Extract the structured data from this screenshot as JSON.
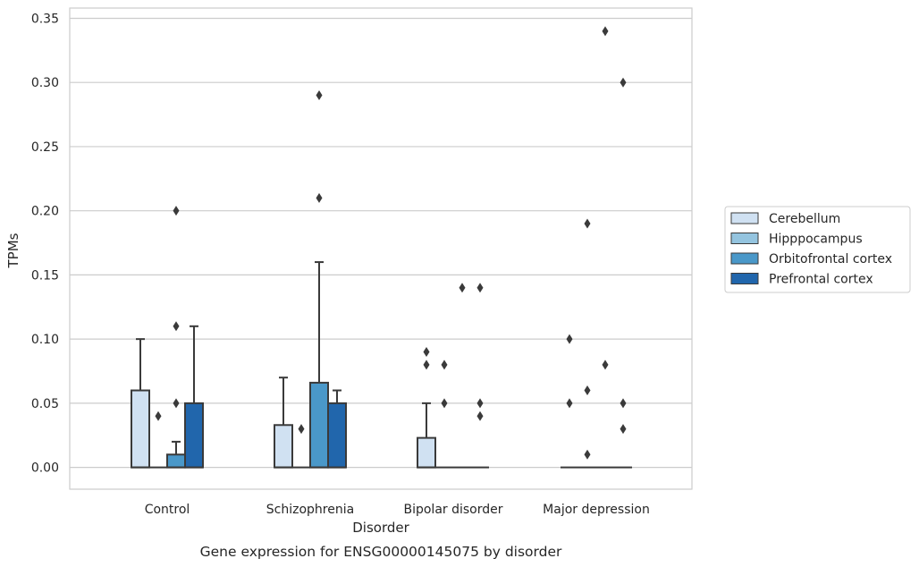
{
  "chart_data": {
    "type": "box",
    "title": "",
    "caption": "Gene expression for ENSG00000145075 by disorder",
    "xlabel": "Disorder",
    "ylabel": "TPMs",
    "ylim": [
      -0.017,
      0.358
    ],
    "yticks": [
      "0.00",
      "0.05",
      "0.10",
      "0.15",
      "0.20",
      "0.25",
      "0.30",
      "0.35"
    ],
    "ytick_values": [
      0.0,
      0.05,
      0.1,
      0.15,
      0.2,
      0.25,
      0.3,
      0.35
    ],
    "grid": "horizontal",
    "legend_position": "right, outside plot area",
    "categories": [
      "Control",
      "Schizophrenia",
      "Bipolar disorder",
      "Major depression"
    ],
    "series": [
      {
        "name": "Cerebellum",
        "color": "#d0e1f2",
        "boxes": [
          {
            "q1": 0.0,
            "median": 0.0,
            "q3": 0.06,
            "whisker_low": 0.0,
            "whisker_high": 0.1,
            "outliers": []
          },
          {
            "q1": 0.0,
            "median": 0.0,
            "q3": 0.033,
            "whisker_low": 0.0,
            "whisker_high": 0.07,
            "outliers": []
          },
          {
            "q1": 0.0,
            "median": 0.0,
            "q3": 0.023,
            "whisker_low": 0.0,
            "whisker_high": 0.05,
            "outliers": [
              0.08,
              0.09
            ]
          },
          {
            "q1": 0.0,
            "median": 0.0,
            "q3": 0.0,
            "whisker_low": 0.0,
            "whisker_high": 0.0,
            "outliers": [
              0.05,
              0.1
            ]
          }
        ]
      },
      {
        "name": "Hipppocampus",
        "color": "#94c4df",
        "boxes": [
          {
            "q1": 0.0,
            "median": 0.0,
            "q3": 0.0,
            "whisker_low": 0.0,
            "whisker_high": 0.0,
            "outliers": [
              0.04
            ]
          },
          {
            "q1": 0.0,
            "median": 0.0,
            "q3": 0.0,
            "whisker_low": 0.0,
            "whisker_high": 0.0,
            "outliers": [
              0.03
            ]
          },
          {
            "q1": 0.0,
            "median": 0.0,
            "q3": 0.0,
            "whisker_low": 0.0,
            "whisker_high": 0.0,
            "outliers": [
              0.05,
              0.08
            ]
          },
          {
            "q1": 0.0,
            "median": 0.0,
            "q3": 0.0,
            "whisker_low": 0.0,
            "whisker_high": 0.0,
            "outliers": [
              0.01,
              0.06,
              0.19
            ]
          }
        ]
      },
      {
        "name": "Orbitofrontal cortex",
        "color": "#4a98c9",
        "boxes": [
          {
            "q1": 0.0,
            "median": 0.0,
            "q3": 0.01,
            "whisker_low": 0.0,
            "whisker_high": 0.02,
            "outliers": [
              0.05,
              0.11,
              0.2
            ]
          },
          {
            "q1": 0.0,
            "median": 0.0,
            "q3": 0.066,
            "whisker_low": 0.0,
            "whisker_high": 0.16,
            "outliers": [
              0.21,
              0.29
            ]
          },
          {
            "q1": 0.0,
            "median": 0.0,
            "q3": 0.0,
            "whisker_low": 0.0,
            "whisker_high": 0.0,
            "outliers": [
              0.14
            ]
          },
          {
            "q1": 0.0,
            "median": 0.0,
            "q3": 0.0,
            "whisker_low": 0.0,
            "whisker_high": 0.0,
            "outliers": [
              0.08,
              0.34
            ]
          }
        ]
      },
      {
        "name": "Prefrontal cortex",
        "color": "#2166ac",
        "boxes": [
          {
            "q1": 0.0,
            "median": 0.0,
            "q3": 0.05,
            "whisker_low": 0.0,
            "whisker_high": 0.11,
            "outliers": []
          },
          {
            "q1": 0.0,
            "median": 0.0,
            "q3": 0.05,
            "whisker_low": 0.0,
            "whisker_high": 0.06,
            "outliers": []
          },
          {
            "q1": 0.0,
            "median": 0.0,
            "q3": 0.0,
            "whisker_low": 0.0,
            "whisker_high": 0.0,
            "outliers": [
              0.04,
              0.05,
              0.14
            ]
          },
          {
            "q1": 0.0,
            "median": 0.0,
            "q3": 0.0,
            "whisker_low": 0.0,
            "whisker_high": 0.0,
            "outliers": [
              0.03,
              0.05,
              0.3
            ]
          }
        ]
      }
    ]
  }
}
